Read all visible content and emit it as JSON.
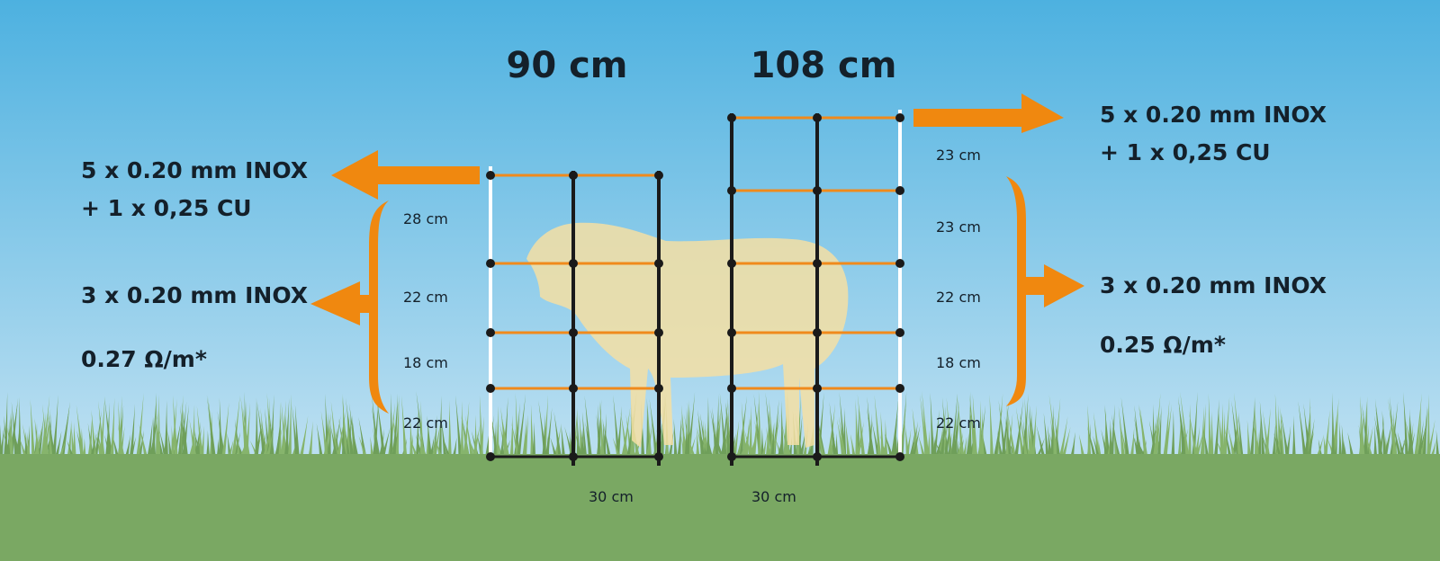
{
  "colors": {
    "sky_top": "#4db1e0",
    "sky_bottom": "#c4e6f4",
    "grass": "#7aa863",
    "wire_orange": "#f08a1c",
    "post_dark": "#1a1a1a",
    "post_white": "#ffffff",
    "sheep": "#f5dfa3",
    "accent": "#f0880f"
  },
  "left_fence": {
    "height_label": "90 cm",
    "top_wire": [
      "5 x 0.20 mm INOX",
      "+ 1 x 0,25 CU"
    ],
    "other_wires": "3 x 0.20 mm INOX",
    "resistance": "0.27 Ω/m*",
    "spacings": [
      "28 cm",
      "22 cm",
      "18 cm",
      "22 cm"
    ],
    "post_spacing": "30 cm"
  },
  "right_fence": {
    "height_label": "108 cm",
    "top_wire": [
      "5 x 0.20 mm INOX",
      "+ 1 x 0,25 CU"
    ],
    "other_wires": "3 x 0.20 mm INOX",
    "resistance": "0.25 Ω/m*",
    "spacings": [
      "23 cm",
      "23 cm",
      "22 cm",
      "18 cm",
      "22 cm"
    ],
    "post_spacing": "30 cm"
  }
}
